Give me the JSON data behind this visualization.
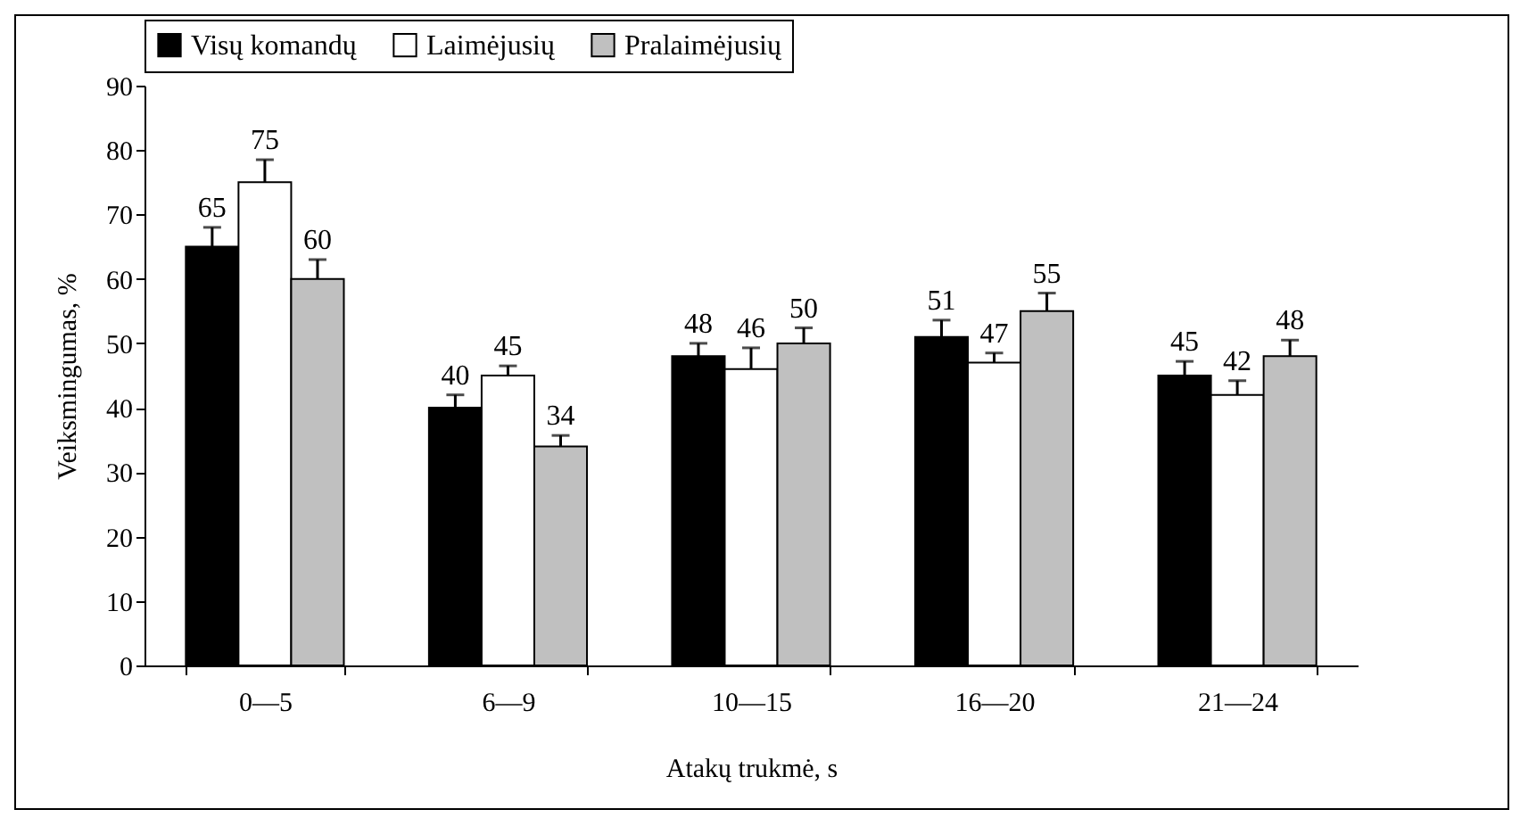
{
  "chart_data": {
    "type": "bar",
    "xlabel": "Atakų trukmė, s",
    "ylabel": "Veiksmingumas, %",
    "categories": [
      "0—5",
      "6—9",
      "10—15",
      "16—20",
      "21—24"
    ],
    "series": [
      {
        "name": "Visų komandų",
        "color": "#000000",
        "values": [
          65,
          40,
          48,
          51,
          45
        ],
        "errors": [
          [
            65,
            68
          ],
          [
            40,
            42
          ],
          [
            48,
            50
          ],
          [
            51,
            53.6
          ],
          [
            45,
            47.2
          ]
        ]
      },
      {
        "name": "Laimėjusių",
        "color": "#ffffff",
        "values": [
          75,
          45,
          46,
          47,
          42
        ],
        "errors": [
          [
            75,
            78.5
          ],
          [
            45,
            46.5
          ],
          [
            46,
            49.3
          ],
          [
            47,
            48.5
          ],
          [
            42,
            44.2
          ]
        ]
      },
      {
        "name": "Pralaimėjusių",
        "color": "#c0c0c0",
        "values": [
          60,
          34,
          50,
          55,
          48
        ],
        "errors": [
          [
            60,
            63
          ],
          [
            34,
            35.7
          ],
          [
            50,
            52.4
          ],
          [
            55,
            57.8
          ],
          [
            48,
            50.5
          ]
        ]
      }
    ],
    "ylim": [
      0,
      90
    ],
    "yticks": [
      0,
      10,
      20,
      30,
      40,
      50,
      60,
      70,
      80,
      90
    ],
    "grid": false,
    "legend": "top",
    "data_labels": true
  }
}
